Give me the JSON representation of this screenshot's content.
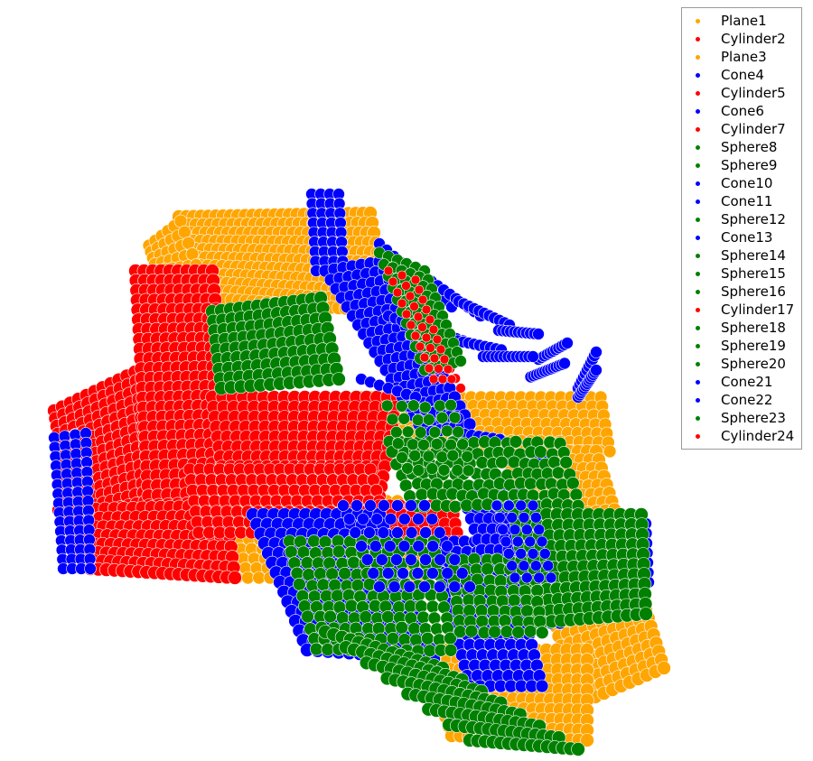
{
  "chart_data": {
    "type": "scatter",
    "title": "",
    "xlabel": "",
    "ylabel": "",
    "axes_visible": false,
    "grid": false,
    "legend_placement": "top-right",
    "marker": "circle",
    "colors": {
      "orange": "#ffa500",
      "red": "#ff0000",
      "blue": "#0000ff",
      "green": "#008000"
    },
    "series": [
      {
        "name": "Plane1",
        "color": "#ffa500"
      },
      {
        "name": "Cylinder2",
        "color": "#ff0000"
      },
      {
        "name": "Plane3",
        "color": "#ffa500"
      },
      {
        "name": "Cone4",
        "color": "#0000ff"
      },
      {
        "name": "Cylinder5",
        "color": "#ff0000"
      },
      {
        "name": "Cone6",
        "color": "#0000ff"
      },
      {
        "name": "Cylinder7",
        "color": "#ff0000"
      },
      {
        "name": "Sphere8",
        "color": "#008000"
      },
      {
        "name": "Sphere9",
        "color": "#008000"
      },
      {
        "name": "Cone10",
        "color": "#0000ff"
      },
      {
        "name": "Cone11",
        "color": "#0000ff"
      },
      {
        "name": "Sphere12",
        "color": "#008000"
      },
      {
        "name": "Cone13",
        "color": "#0000ff"
      },
      {
        "name": "Sphere14",
        "color": "#008000"
      },
      {
        "name": "Sphere15",
        "color": "#008000"
      },
      {
        "name": "Sphere16",
        "color": "#008000"
      },
      {
        "name": "Cylinder17",
        "color": "#ff0000"
      },
      {
        "name": "Sphere18",
        "color": "#008000"
      },
      {
        "name": "Sphere19",
        "color": "#008000"
      },
      {
        "name": "Sphere20",
        "color": "#008000"
      },
      {
        "name": "Cone21",
        "color": "#0000ff"
      },
      {
        "name": "Cone22",
        "color": "#0000ff"
      },
      {
        "name": "Sphere23",
        "color": "#008000"
      },
      {
        "name": "Cylinder24",
        "color": "#ff0000"
      }
    ]
  }
}
